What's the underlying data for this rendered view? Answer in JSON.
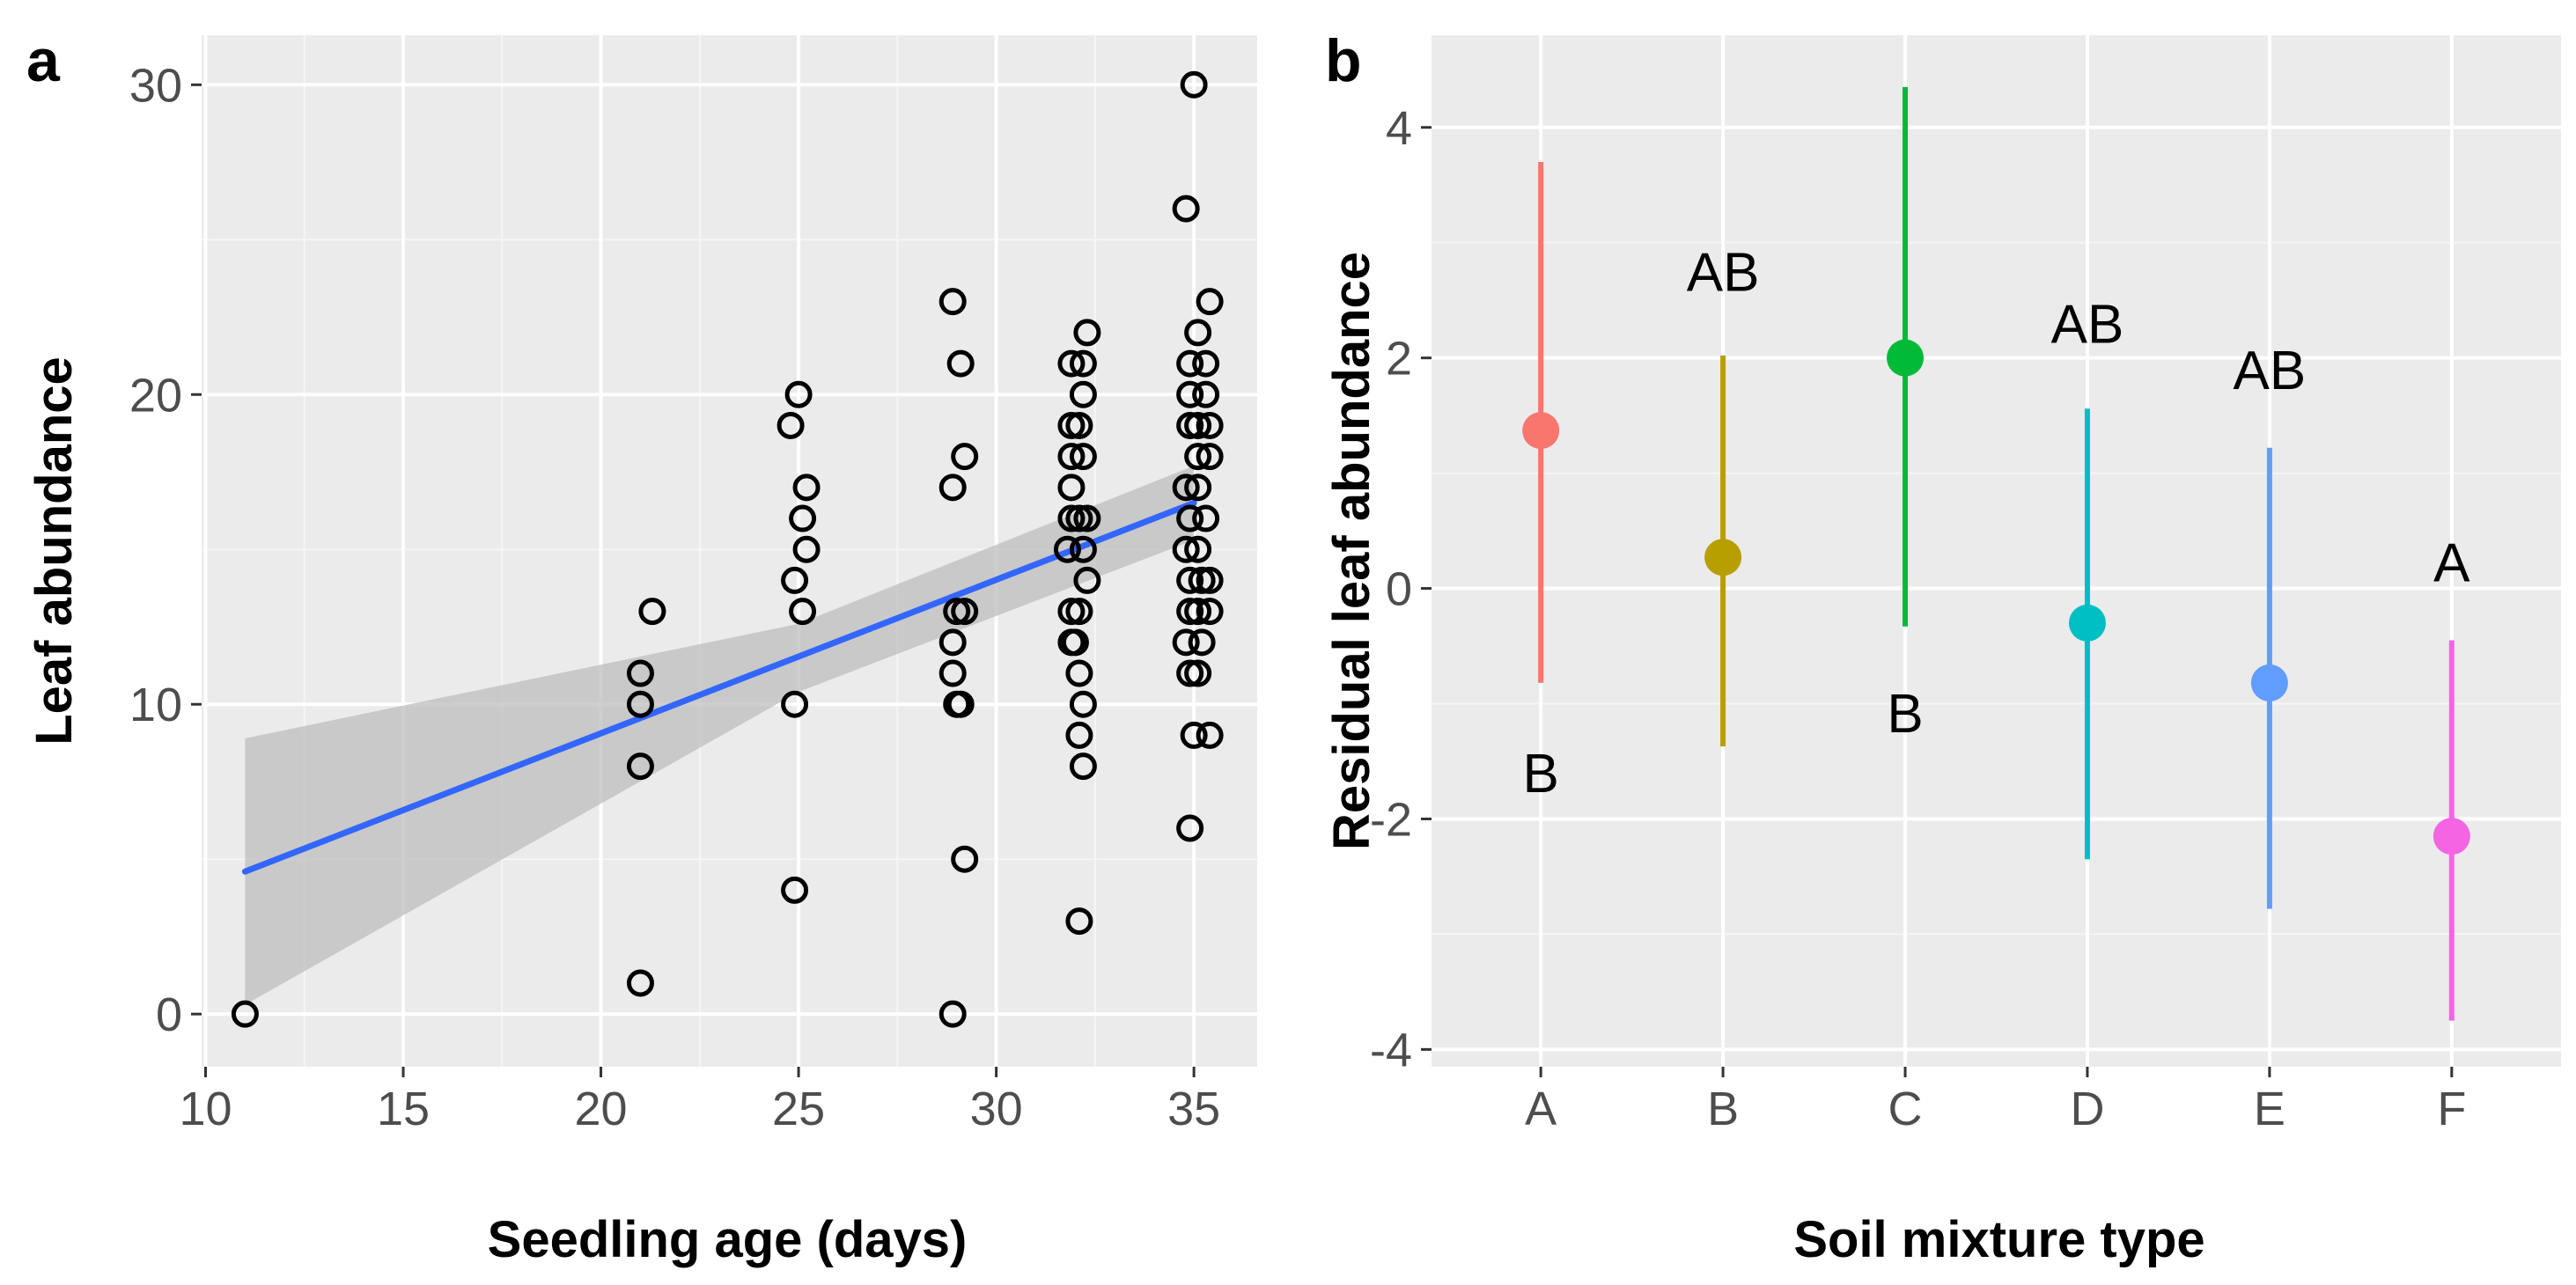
{
  "colors": {
    "panel_bg": "#ebebeb",
    "grid_major": "#ffffff",
    "grid_minor": "#f5f5f5",
    "tick_text": "#4d4d4d",
    "fit_line": "#3366ff",
    "ribbon": "#bdbdbd",
    "points_outline": "#000000"
  },
  "chart_data": [
    {
      "panel_label": "a",
      "type": "scatter",
      "xlabel": "Seedling age (days)",
      "ylabel": "Leaf abundance",
      "xlim": [
        9.9,
        36.6
      ],
      "ylim": [
        -1.7,
        31.6
      ],
      "x_ticks": [
        10,
        15,
        20,
        25,
        30,
        35
      ],
      "y_ticks": [
        0,
        10,
        20,
        30
      ],
      "grid": true,
      "legend": "none",
      "points": [
        [
          11,
          0
        ],
        [
          21,
          11
        ],
        [
          21,
          10
        ],
        [
          21,
          8
        ],
        [
          21,
          1
        ],
        [
          21.3,
          13
        ],
        [
          25,
          20
        ],
        [
          24.8,
          19
        ],
        [
          25.2,
          17
        ],
        [
          25.1,
          16
        ],
        [
          25.2,
          15
        ],
        [
          24.9,
          14
        ],
        [
          25.1,
          13
        ],
        [
          24.9,
          10
        ],
        [
          24.9,
          4
        ],
        [
          28.9,
          23
        ],
        [
          29.1,
          21
        ],
        [
          29.2,
          18
        ],
        [
          28.9,
          17
        ],
        [
          29,
          13
        ],
        [
          29.2,
          13
        ],
        [
          28.9,
          12
        ],
        [
          28.9,
          11
        ],
        [
          29,
          10
        ],
        [
          29.1,
          10
        ],
        [
          29.2,
          5
        ],
        [
          28.9,
          0
        ],
        [
          32.3,
          22
        ],
        [
          31.9,
          21
        ],
        [
          32.2,
          21
        ],
        [
          32.2,
          20
        ],
        [
          31.9,
          19
        ],
        [
          32.1,
          19
        ],
        [
          31.9,
          18
        ],
        [
          32.2,
          18
        ],
        [
          31.9,
          17
        ],
        [
          31.9,
          16
        ],
        [
          32.1,
          16
        ],
        [
          32.3,
          16
        ],
        [
          31.8,
          15
        ],
        [
          32.2,
          15
        ],
        [
          32.3,
          14
        ],
        [
          31.9,
          13
        ],
        [
          32.1,
          13
        ],
        [
          31.9,
          12
        ],
        [
          32,
          12
        ],
        [
          32.1,
          11
        ],
        [
          32.2,
          10
        ],
        [
          32.1,
          9
        ],
        [
          32.2,
          8
        ],
        [
          32.1,
          3
        ],
        [
          34.8,
          26
        ],
        [
          35,
          30
        ],
        [
          35.4,
          23
        ],
        [
          35.1,
          22
        ],
        [
          34.9,
          21
        ],
        [
          35.3,
          21
        ],
        [
          34.9,
          20
        ],
        [
          35.3,
          20
        ],
        [
          34.9,
          19
        ],
        [
          35.1,
          19
        ],
        [
          35.4,
          19
        ],
        [
          35.1,
          18
        ],
        [
          35.4,
          18
        ],
        [
          34.8,
          17
        ],
        [
          35.1,
          17
        ],
        [
          34.9,
          16
        ],
        [
          35.3,
          16
        ],
        [
          34.8,
          15
        ],
        [
          35.1,
          15
        ],
        [
          34.9,
          14
        ],
        [
          35.2,
          14
        ],
        [
          35.4,
          14
        ],
        [
          34.9,
          13
        ],
        [
          35.1,
          13
        ],
        [
          35.4,
          13
        ],
        [
          34.8,
          12
        ],
        [
          35.2,
          12
        ],
        [
          34.9,
          11
        ],
        [
          35.1,
          11
        ],
        [
          35,
          9
        ],
        [
          35.4,
          9
        ],
        [
          34.9,
          6
        ]
      ],
      "fit_line": {
        "x": [
          11,
          35
        ],
        "y": [
          4.6,
          16.5
        ]
      },
      "confidence_band": {
        "x": [
          11,
          25,
          35
        ],
        "upper": [
          8.9,
          12.6,
          17.7
        ],
        "lower": [
          0.3,
          10.4,
          15.3
        ]
      }
    },
    {
      "panel_label": "b",
      "type": "pointrange",
      "xlabel": "Soil mixture type",
      "ylabel": "Residual leaf abundance",
      "ylim": [
        -4.15,
        4.8
      ],
      "y_ticks": [
        -4,
        -2,
        0,
        2,
        4
      ],
      "y_tick_labels": [
        "-4",
        "-2",
        "0",
        "2",
        "4"
      ],
      "grid": true,
      "legend": "none",
      "categories": [
        "A",
        "B",
        "C",
        "D",
        "E",
        "F"
      ],
      "points": [
        {
          "category": "A",
          "mean": 1.37,
          "low": -0.82,
          "high": 3.7,
          "color": "#f8766d",
          "letter": "B",
          "letter_y": -1.6
        },
        {
          "category": "B",
          "mean": 0.27,
          "low": -1.37,
          "high": 2.02,
          "color": "#b79f00",
          "letter": "AB",
          "letter_y": 2.75
        },
        {
          "category": "C",
          "mean": 2.0,
          "low": -0.33,
          "high": 4.35,
          "color": "#00ba38",
          "letter": "B",
          "letter_y": -1.08
        },
        {
          "category": "D",
          "mean": -0.3,
          "low": -2.35,
          "high": 1.56,
          "color": "#00bfc4",
          "letter": "AB",
          "letter_y": 2.3
        },
        {
          "category": "E",
          "mean": -0.82,
          "low": -2.78,
          "high": 1.22,
          "color": "#619cff",
          "letter": "AB",
          "letter_y": 1.9
        },
        {
          "category": "F",
          "mean": -2.15,
          "low": -3.75,
          "high": -0.45,
          "color": "#f564e3",
          "letter": "A",
          "letter_y": 0.23
        }
      ]
    }
  ]
}
